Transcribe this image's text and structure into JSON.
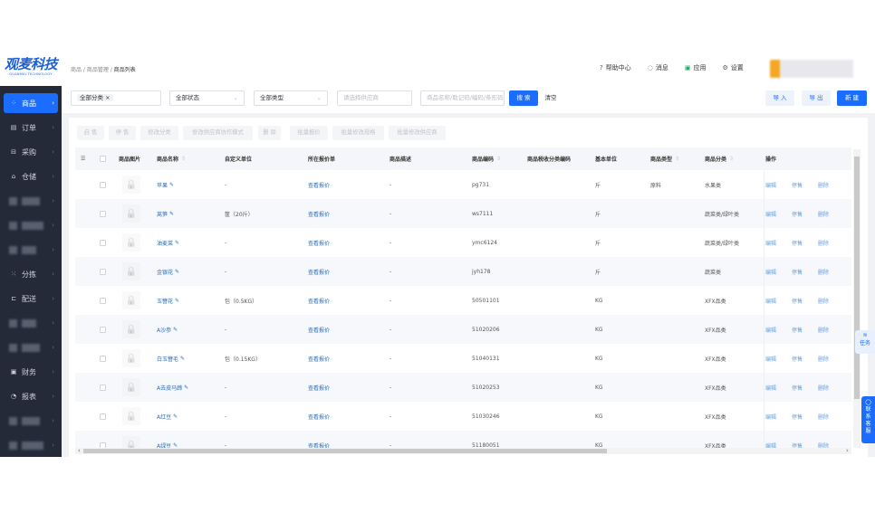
{
  "logo": {
    "title": "观麦科技",
    "subtitle": "GUANMAI·TECHNOLOGY"
  },
  "breadcrumb": [
    "商品",
    "商品管理",
    "商品列表"
  ],
  "topnav": [
    {
      "icon": "help-icon",
      "glyph": "?",
      "label": "帮助中心"
    },
    {
      "icon": "bell-icon",
      "glyph": "◌",
      "label": "消息"
    },
    {
      "icon": "app-icon",
      "glyph": "▣",
      "label": "应用"
    },
    {
      "icon": "settings-icon",
      "glyph": "⚙",
      "label": "设置"
    }
  ],
  "sidebar": [
    {
      "label": "商品",
      "icon": "grid-icon",
      "glyph": "⁘",
      "active": true
    },
    {
      "label": "订单",
      "icon": "clipboard-icon",
      "glyph": "▤"
    },
    {
      "label": "采购",
      "icon": "cart-icon",
      "glyph": "⊟"
    },
    {
      "label": "仓储",
      "icon": "warehouse-icon",
      "glyph": "⌂"
    },
    {
      "label": "",
      "blurred": true
    },
    {
      "label": "",
      "blurred": true
    },
    {
      "label": "",
      "blurred": true
    },
    {
      "label": "分拣",
      "icon": "sort-icon",
      "glyph": "⁙"
    },
    {
      "label": "配送",
      "icon": "truck-icon",
      "glyph": "⊏"
    },
    {
      "label": "",
      "blurred": true
    },
    {
      "label": "",
      "blurred": true
    },
    {
      "label": "财务",
      "icon": "finance-icon",
      "glyph": "▣"
    },
    {
      "label": "报表",
      "icon": "report-icon",
      "glyph": "◔"
    },
    {
      "label": "",
      "blurred": true
    },
    {
      "label": "",
      "blurred": true
    }
  ],
  "filters": {
    "category_tag": "全部分类",
    "status": "全部状态",
    "type": "全部类型",
    "supplier_placeholder": "请选择供应商",
    "search_placeholder": "商品名称/助记码/编码/条形码",
    "search": "搜 索",
    "clear": "清空",
    "import": "导 入",
    "export": "导 出",
    "create": "新 建"
  },
  "actions": [
    "启 售",
    "停 售",
    "修改分类",
    "修改供应商协作模式",
    "删 除",
    "批量报价",
    "批量修改规格",
    "批量修改供应商"
  ],
  "columns": [
    "商品图片",
    "商品名称",
    "自定义单位",
    "所在报价单",
    "商品描述",
    "商品编码",
    "商品税收分类编码",
    "基本单位",
    "商品类型",
    "商品分类",
    "操作"
  ],
  "rows": [
    {
      "name": "苹果",
      "unit": "-",
      "quote": "查看报价",
      "desc": "-",
      "code": "pg731",
      "tax": "",
      "base": "斤",
      "type": "原料",
      "category": "水果类"
    },
    {
      "name": "莴笋",
      "unit": "筐（20斤）",
      "quote": "查看报价",
      "desc": "-",
      "code": "ws7111",
      "tax": "",
      "base": "斤",
      "type": "",
      "category": "蔬菜类/绿叶类"
    },
    {
      "name": "油麦菜",
      "unit": "-",
      "quote": "查看报价",
      "desc": "-",
      "code": "ymc6124",
      "tax": "",
      "base": "斤",
      "type": "",
      "category": "蔬菜类/绿叶类"
    },
    {
      "name": "金银花",
      "unit": "-",
      "quote": "查看报价",
      "desc": "-",
      "code": "jyh178",
      "tax": "",
      "base": "斤",
      "type": "",
      "category": "蔬菜类"
    },
    {
      "name": "玉簪花",
      "unit": "包（0.5KG）",
      "quote": "查看报价",
      "desc": "-",
      "code": "50501101",
      "tax": "",
      "base": "KG",
      "type": "",
      "category": "XFX品类"
    },
    {
      "name": "A沙参",
      "unit": "-",
      "quote": "查看报价",
      "desc": "-",
      "code": "51020206",
      "tax": "",
      "base": "KG",
      "type": "",
      "category": "XFX品类"
    },
    {
      "name": "白玉簪毛",
      "unit": "包（0.15KG）",
      "quote": "查看报价",
      "desc": "-",
      "code": "51040131",
      "tax": "",
      "base": "KG",
      "type": "",
      "category": "XFX品类"
    },
    {
      "name": "A去皮马蹄",
      "unit": "-",
      "quote": "查看报价",
      "desc": "-",
      "code": "51020253",
      "tax": "",
      "base": "KG",
      "type": "",
      "category": "XFX品类"
    },
    {
      "name": "A红豆",
      "unit": "-",
      "quote": "查看报价",
      "desc": "-",
      "code": "51030246",
      "tax": "",
      "base": "KG",
      "type": "",
      "category": "XFX品类"
    },
    {
      "name": "A绿豆",
      "unit": "-",
      "quote": "查看报价",
      "desc": "-",
      "code": "51180051",
      "tax": "",
      "base": "KG",
      "type": "",
      "category": "XFX品类"
    }
  ],
  "row_ops": [
    "编辑",
    "停售",
    "删除"
  ],
  "float": {
    "task": "任务",
    "service": "联系客服"
  },
  "colors": {
    "primary": "#1a6dff",
    "sidebar": "#242a37",
    "link": "#2f6fb8"
  }
}
